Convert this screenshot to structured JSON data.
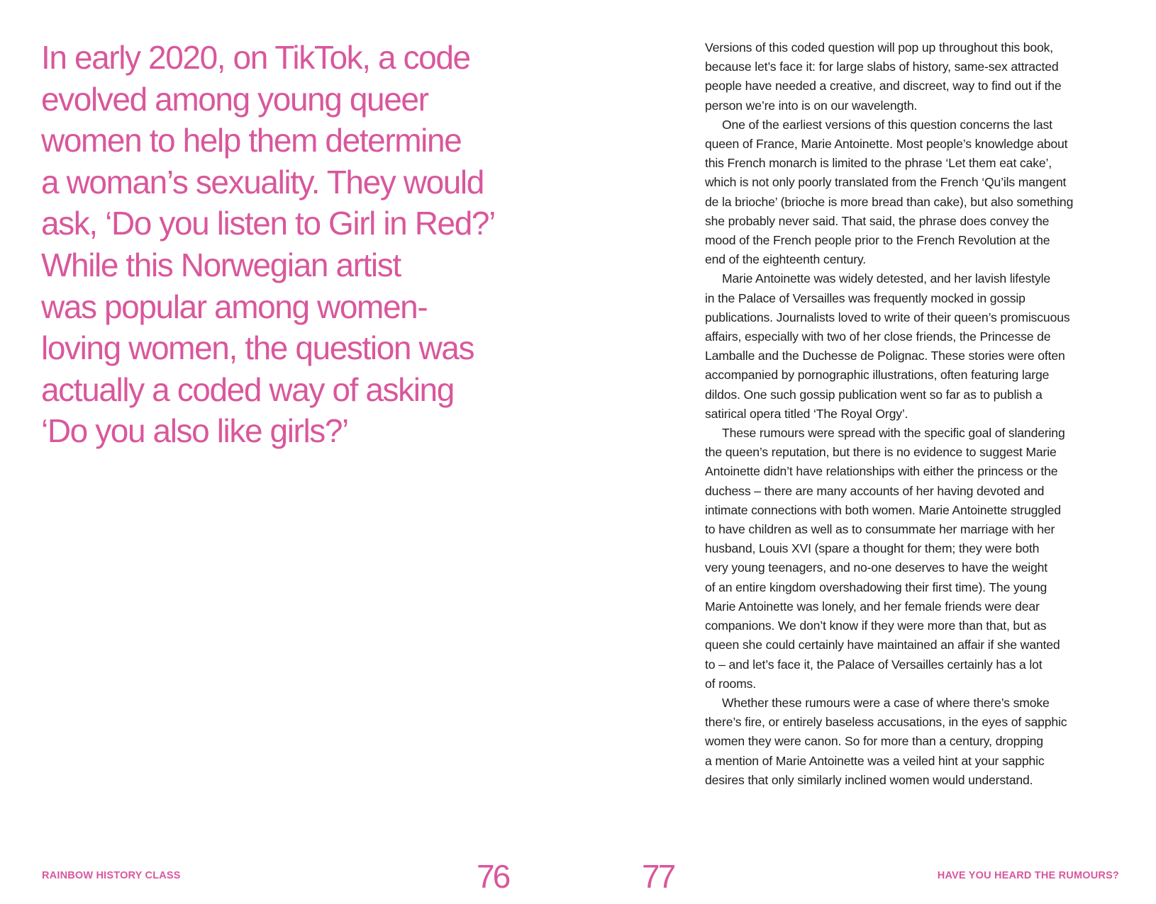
{
  "left_page": {
    "pull_quote_lines": [
      "In early 2020, on TikTok, a code",
      "evolved among young queer",
      "women to help them determine",
      "a woman’s sexuality. They would",
      "ask, ‘Do you listen to Girl in Red?’",
      "While this Norwegian artist",
      "was popular among women-",
      "loving women, the question was",
      "actually a coded way of asking",
      "‘Do you also like girls?’"
    ],
    "running_head": "RAINBOW HISTORY CLASS",
    "page_number": "76"
  },
  "right_page": {
    "lines": [
      {
        "t": "Versions of this coded question will pop up throughout this book,",
        "i": false
      },
      {
        "t": "because let’s face it: for large slabs of history, same-sex attracted",
        "i": false
      },
      {
        "t": "people have needed a creative, and discreet, way to find out if the",
        "i": false
      },
      {
        "t": "person we’re into is on our wavelength.",
        "i": false
      },
      {
        "t": "One of the earliest versions of this question concerns the last",
        "i": true
      },
      {
        "t": "queen of France, Marie Antoinette. Most people’s knowledge about",
        "i": false
      },
      {
        "t": "this French monarch is limited to the phrase ‘Let them eat cake’,",
        "i": false
      },
      {
        "t": "which is not only poorly translated from the French ‘Qu’ils mangent",
        "i": false
      },
      {
        "t": "de la brioche’ (brioche is more bread than cake), but also something",
        "i": false
      },
      {
        "t": "she probably never said. That said, the phrase does convey the",
        "i": false
      },
      {
        "t": "mood of the French people prior to the French Revolution at the",
        "i": false
      },
      {
        "t": "end of the eighteenth century.",
        "i": false
      },
      {
        "t": "Marie Antoinette was widely detested, and her lavish lifestyle",
        "i": true
      },
      {
        "t": "in the Palace of Versailles was frequently mocked in gossip",
        "i": false
      },
      {
        "t": "publications. Journalists loved to write of their queen’s promiscuous",
        "i": false
      },
      {
        "t": "affairs, especially with two of her close friends, the Princesse de",
        "i": false
      },
      {
        "t": "Lamballe and the Duchesse de Polignac. These stories were often",
        "i": false
      },
      {
        "t": "accompanied by pornographic illustrations, often featuring large",
        "i": false
      },
      {
        "t": "dildos. One such gossip publication went so far as to publish a",
        "i": false
      },
      {
        "t": "satirical opera titled ‘The Royal Orgy’.",
        "i": false
      },
      {
        "t": "These rumours were spread with the specific goal of slandering",
        "i": true
      },
      {
        "t": "the queen’s reputation, but there is no evidence to suggest Marie",
        "i": false
      },
      {
        "t": "Antoinette didn’t have relationships with either the princess or the",
        "i": false
      },
      {
        "t": "duchess – there are many accounts of her having devoted and",
        "i": false
      },
      {
        "t": "intimate connections with both women. Marie Antoinette struggled",
        "i": false
      },
      {
        "t": "to have children as well as to consummate her marriage with her",
        "i": false
      },
      {
        "t": "husband, Louis XVI (spare a thought for them; they were both",
        "i": false
      },
      {
        "t": "very young teenagers, and no-one deserves to have the weight",
        "i": false
      },
      {
        "t": "of an entire kingdom overshadowing their first time). The young",
        "i": false
      },
      {
        "t": "Marie Antoinette was lonely, and her female friends were dear",
        "i": false
      },
      {
        "t": "companions. We don’t know if they were more than that, but as",
        "i": false
      },
      {
        "t": "queen she could certainly have maintained an affair if she wanted",
        "i": false
      },
      {
        "t": "to – and let’s face it, the Palace of Versailles certainly has a lot",
        "i": false
      },
      {
        "t": "of rooms.",
        "i": false
      },
      {
        "t": "Whether these rumours were a case of where there’s smoke",
        "i": true
      },
      {
        "t": "there’s fire, or entirely baseless accusations, in the eyes of sapphic",
        "i": false
      },
      {
        "t": "women they were canon. So for more than a century, dropping",
        "i": false
      },
      {
        "t": "a mention of Marie Antoinette was a veiled hint at your sapphic",
        "i": false
      },
      {
        "t": "desires that only similarly inclined women would understand.",
        "i": false
      }
    ],
    "running_head": "HAVE YOU HEARD THE RUMOURS?",
    "page_number": "77"
  },
  "colors": {
    "accent": "#d9579c",
    "text": "#1e1e1e"
  }
}
